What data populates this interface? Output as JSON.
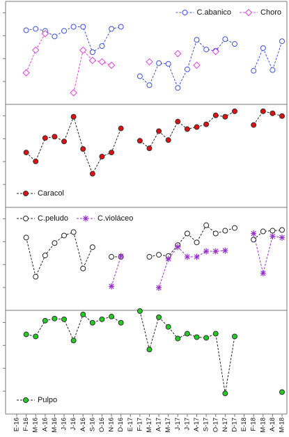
{
  "chart_data": [
    {
      "type": "line",
      "legend": "upper right",
      "ylim": [
        0,
        4.5
      ],
      "yticks": [
        1,
        2,
        3,
        4
      ],
      "series": [
        {
          "name": "C.abanico",
          "color": "#3a4fd8",
          "line_color": "#3a4fd8",
          "marker": "circle",
          "filled": false,
          "values": [
            null,
            3.24,
            3.3,
            3.21,
            2.97,
            3.21,
            3.39,
            3.39,
            2.28,
            2.55,
            3.3,
            3.39,
            null,
            1.23,
            0.84,
            1.8,
            1.77,
            0.72,
            1.53,
            2.82,
            2.4,
            2.34,
            2.85,
            2.64,
            null,
            1.47,
            2.46,
            1.5,
            2.76
          ]
        },
        {
          "name": "Choro",
          "color": "#e040e0",
          "line_color": "#e040e0",
          "marker": "diamond",
          "filled": false,
          "values": [
            null,
            1.38,
            2.37,
            3.09,
            null,
            null,
            0.51,
            2.37,
            1.92,
            1.86,
            1.71,
            null,
            null,
            null,
            1.86,
            null,
            null,
            2.22,
            null,
            1.71,
            null,
            2.31,
            null,
            null,
            null,
            null,
            null,
            null,
            null
          ]
        }
      ]
    },
    {
      "type": "line",
      "legend": "lower left",
      "ylim": [
        0,
        4.5
      ],
      "yticks": [
        1,
        2,
        3,
        4
      ],
      "series": [
        {
          "name": "Caracol",
          "color": "#e01010",
          "line_color": "#222222",
          "marker": "circle",
          "filled": true,
          "values": [
            null,
            2.4,
            2.01,
            3.03,
            3.09,
            2.88,
            3.96,
            2.55,
            1.47,
            2.22,
            2.4,
            3.45,
            null,
            2.91,
            2.58,
            3.33,
            2.94,
            3.75,
            3.42,
            3.51,
            3.63,
            4.02,
            3.96,
            4.2,
            null,
            3.6,
            4.2,
            4.11,
            3.99
          ]
        }
      ]
    },
    {
      "type": "line",
      "legend": "upper left",
      "ylim": [
        0,
        4.5
      ],
      "yticks": [
        1,
        2,
        3,
        4
      ],
      "series": [
        {
          "name": "C.peludo",
          "color": "#222222",
          "line_color": "#222222",
          "marker": "circle",
          "filled": false,
          "values": [
            null,
            3.18,
            1.47,
            2.4,
            2.94,
            3.27,
            3.42,
            1.83,
            2.76,
            null,
            2.34,
            2.34,
            null,
            null,
            2.34,
            2.43,
            2.37,
            2.85,
            3.36,
            2.97,
            3.72,
            3.36,
            3.48,
            3.6,
            null,
            3.09,
            3.45,
            3.48,
            3.51
          ]
        },
        {
          "name": "C.violáceo",
          "color": "#9b30d0",
          "line_color": "#9b30d0",
          "marker": "asterisk",
          "filled": false,
          "values": [
            null,
            null,
            null,
            null,
            null,
            null,
            null,
            null,
            null,
            null,
            1.05,
            2.37,
            null,
            null,
            null,
            0.99,
            2.25,
            2.77,
            2.34,
            2.34,
            2.58,
            2.58,
            2.61,
            null,
            null,
            3.36,
            1.62,
            3.24,
            3.18
          ]
        }
      ]
    },
    {
      "type": "line",
      "legend": "lower left",
      "ylim": [
        0,
        4.5
      ],
      "yticks": [
        1,
        2,
        3,
        4
      ],
      "categories": [
        "E-16",
        "F-16",
        "M-16",
        "A-16",
        "M-16",
        "J-16",
        "J-16",
        "A-16",
        "S-16",
        "O-16",
        "N-16",
        "D-16",
        "E-17",
        "F-17",
        "M-17",
        "A-17",
        "M-17",
        "J-17",
        "J-17",
        "A-17",
        "S-17",
        "O-17",
        "N-17",
        "D-17",
        "E-18",
        "F-18",
        "M-18",
        "A-18",
        "M-18"
      ],
      "series": [
        {
          "name": "Pulpo",
          "color": "#22cc22",
          "line_color": "#222222",
          "marker": "circle",
          "filled": true,
          "values": [
            null,
            3.48,
            3.39,
            4.08,
            4.17,
            4.14,
            3.21,
            4.35,
            3.99,
            4.14,
            4.26,
            3.99,
            null,
            4.5,
            2.82,
            4.23,
            3.81,
            3.3,
            3.51,
            3.36,
            3.33,
            3.51,
            0.9,
            3.39,
            null,
            null,
            null,
            null,
            0.96
          ]
        }
      ]
    }
  ]
}
